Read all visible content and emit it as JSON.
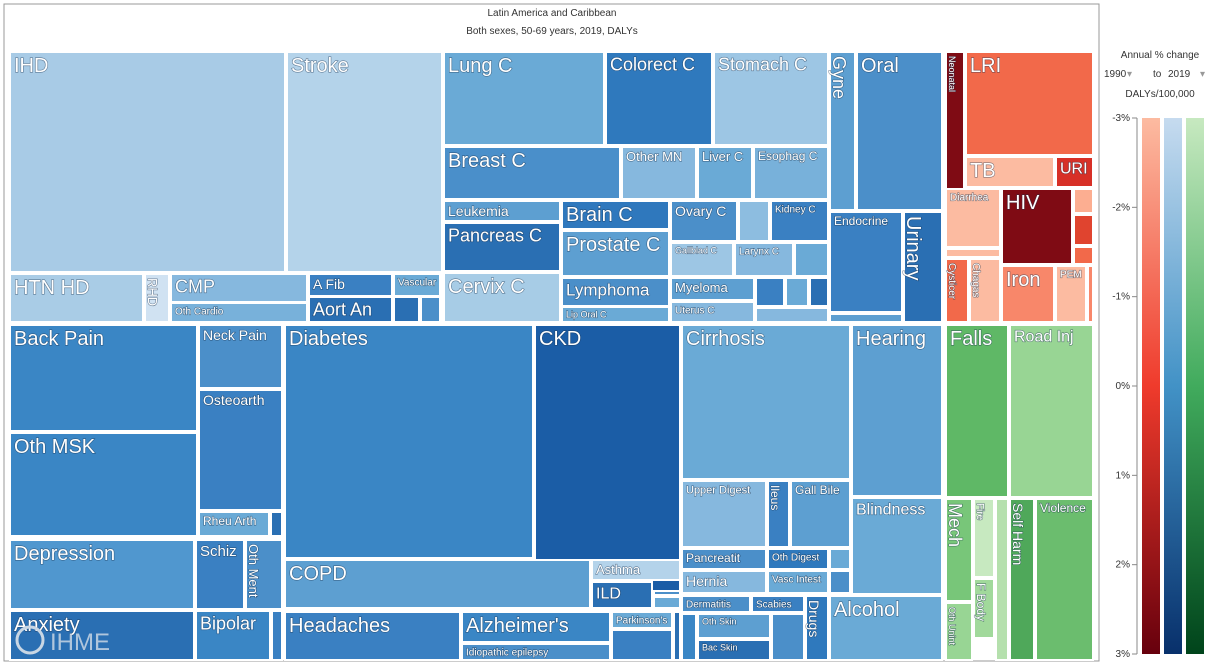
{
  "header": {
    "title": "Latin America and Caribbean",
    "subtitle": "Both sexes, 50-69 years, 2019, DALYs"
  },
  "legend": {
    "title": "Annual % change",
    "from": "1990",
    "to_word": "to",
    "to": "2019",
    "unit": "DALYs/100,000",
    "ticks": [
      "-3%",
      "-2%",
      "-1%",
      "0%",
      "1%",
      "2%",
      "3%"
    ]
  },
  "logo": "IHME",
  "cells": [
    {
      "label": "IHD"
    },
    {
      "label": "Stroke"
    },
    {
      "label": "HTN HD"
    },
    {
      "label": "RHD"
    },
    {
      "label": "CMP"
    },
    {
      "label": "Oth Cardio"
    },
    {
      "label": "A Fib"
    },
    {
      "label": "Aort An"
    },
    {
      "label": "Vascular"
    },
    {
      "label": "Lung C"
    },
    {
      "label": "Colorect C"
    },
    {
      "label": "Stomach C"
    },
    {
      "label": "Breast C"
    },
    {
      "label": "Other MN"
    },
    {
      "label": "Liver C"
    },
    {
      "label": "Esophag C"
    },
    {
      "label": "Leukemia"
    },
    {
      "label": "Pancreas C"
    },
    {
      "label": "Brain C"
    },
    {
      "label": "Prostate C"
    },
    {
      "label": "Ovary C"
    },
    {
      "label": "Kidney C"
    },
    {
      "label": "Gallblad C"
    },
    {
      "label": "Larynx C"
    },
    {
      "label": "Cervix C"
    },
    {
      "label": "Lymphoma"
    },
    {
      "label": "Lip Oral C"
    },
    {
      "label": "Myeloma"
    },
    {
      "label": "Uterus C"
    },
    {
      "label": "Gyne"
    },
    {
      "label": "Oral"
    },
    {
      "label": "Endocrine"
    },
    {
      "label": "Urinary"
    },
    {
      "label": "Neonatal"
    },
    {
      "label": "LRI"
    },
    {
      "label": "TB"
    },
    {
      "label": "URI"
    },
    {
      "label": "Diarrhea"
    },
    {
      "label": "HIV"
    },
    {
      "label": "Cysticer"
    },
    {
      "label": "Chagas"
    },
    {
      "label": "Iron"
    },
    {
      "label": "PEM"
    },
    {
      "label": "Back Pain"
    },
    {
      "label": "Neck Pain"
    },
    {
      "label": "Osteoarth"
    },
    {
      "label": "Oth MSK"
    },
    {
      "label": "Rheu Arth"
    },
    {
      "label": "Depression"
    },
    {
      "label": "Schiz"
    },
    {
      "label": "Oth Ment"
    },
    {
      "label": "Anxiety"
    },
    {
      "label": "Bipolar"
    },
    {
      "label": "Diabetes"
    },
    {
      "label": "CKD"
    },
    {
      "label": "COPD"
    },
    {
      "label": "Asthma"
    },
    {
      "label": "ILD"
    },
    {
      "label": "Headaches"
    },
    {
      "label": "Alzheimer's"
    },
    {
      "label": "Idiopathic epilepsy"
    },
    {
      "label": "Parkinson's"
    },
    {
      "label": "Cirrhosis"
    },
    {
      "label": "Hearing"
    },
    {
      "label": "Upper Digest"
    },
    {
      "label": "Ileus"
    },
    {
      "label": "Gall Bile"
    },
    {
      "label": "Blindness"
    },
    {
      "label": "Pancreatit"
    },
    {
      "label": "Oth Digest"
    },
    {
      "label": "Hernia"
    },
    {
      "label": "Vasc Intest"
    },
    {
      "label": "Dermatitis"
    },
    {
      "label": "Scabies"
    },
    {
      "label": "Oth Skin"
    },
    {
      "label": "Bac Skin"
    },
    {
      "label": "Drugs"
    },
    {
      "label": "Alcohol"
    },
    {
      "label": "Falls"
    },
    {
      "label": "Road Inj"
    },
    {
      "label": "Mech"
    },
    {
      "label": "Fire"
    },
    {
      "label": "F Body"
    },
    {
      "label": "Oth Unint"
    },
    {
      "label": "Self Harm"
    },
    {
      "label": "Violence"
    }
  ]
}
